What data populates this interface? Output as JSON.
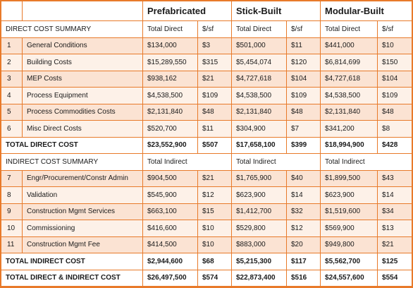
{
  "methods": [
    "Prefabricated",
    "Stick-Built",
    "Modular-Built"
  ],
  "direct_section": {
    "label": "DIRECT COST SUMMARY",
    "col_labels": [
      "Total Direct",
      "$/sf",
      "Total Direct",
      "$/sf",
      "Total Direct",
      "$/sf"
    ]
  },
  "direct_rows": [
    {
      "no": "1",
      "item": "General Conditions",
      "values": [
        "$134,000",
        "$3",
        "$501,000",
        "$11",
        "$441,000",
        "$10"
      ]
    },
    {
      "no": "2",
      "item": "Building Costs",
      "values": [
        "$15,289,550",
        "$315",
        "$5,454,074",
        "$120",
        "$6,814,699",
        "$150"
      ]
    },
    {
      "no": "3",
      "item": "MEP Costs",
      "values": [
        "$938,162",
        "$21",
        "$4,727,618",
        "$104",
        "$4,727,618",
        "$104"
      ]
    },
    {
      "no": "4",
      "item": "Process Equipment",
      "values": [
        "$4,538,500",
        "$109",
        "$4,538,500",
        "$109",
        "$4,538,500",
        "$109"
      ]
    },
    {
      "no": "5",
      "item": "Process Commodities Costs",
      "values": [
        "$2,131,840",
        "$48",
        "$2,131,840",
        "$48",
        "$2,131,840",
        "$48"
      ]
    },
    {
      "no": "6",
      "item": "Misc Direct Costs",
      "values": [
        "$520,700",
        "$11",
        "$304,900",
        "$7",
        "$341,200",
        "$8"
      ]
    }
  ],
  "total_direct": {
    "label": "TOTAL DIRECT COST",
    "values": [
      "$23,552,900",
      "$507",
      "$17,658,100",
      "$399",
      "$18,994,900",
      "$428"
    ]
  },
  "indirect_section": {
    "label": "INDIRECT COST SUMMARY",
    "col_labels": [
      "Total Indirect",
      "Total Indirect",
      "Total Indirect"
    ]
  },
  "indirect_rows": [
    {
      "no": "7",
      "item": "Engr/Procurement/Constr Admin",
      "values": [
        "$904,500",
        "$21",
        "$1,765,900",
        "$40",
        "$1,899,500",
        "$43"
      ]
    },
    {
      "no": "8",
      "item": "Validation",
      "values": [
        "$545,900",
        "$12",
        "$623,900",
        "$14",
        "$623,900",
        "$14"
      ]
    },
    {
      "no": "9",
      "item": "Construction Mgmt Services",
      "values": [
        "$663,100",
        "$15",
        "$1,412,700",
        "$32",
        "$1,519,600",
        "$34"
      ]
    },
    {
      "no": "10",
      "item": "Commissioning",
      "values": [
        "$416,600",
        "$10",
        "$529,800",
        "$12",
        "$569,900",
        "$13"
      ]
    },
    {
      "no": "11",
      "item": "Construction Mgmt Fee",
      "values": [
        "$414,500",
        "$10",
        "$883,000",
        "$20",
        "$949,800",
        "$21"
      ]
    }
  ],
  "total_indirect": {
    "label": "TOTAL INDIRECT COST",
    "values": [
      "$2,944,600",
      "$68",
      "$5,215,300",
      "$117",
      "$5,562,700",
      "$125"
    ]
  },
  "grand_total": {
    "label": "TOTAL DIRECT & INDIRECT COST",
    "values": [
      "$26,497,500",
      "$574",
      "$22,873,400",
      "$516",
      "$24,557,600",
      "$554"
    ]
  },
  "colors": {
    "border": "#e87a2a",
    "row_odd": "#fbe3d3",
    "row_even": "#fdf1e8"
  }
}
